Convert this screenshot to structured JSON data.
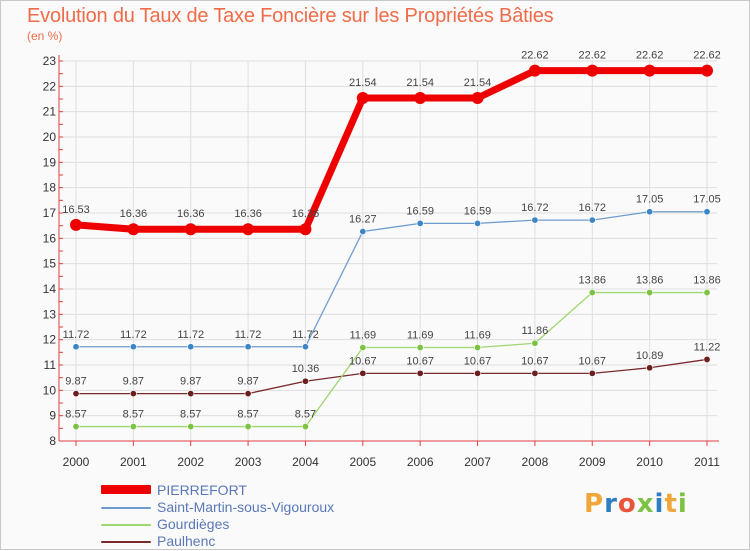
{
  "header": {
    "title": "Evolution du Taux de Taxe Foncière sur les Propriétés Bâties",
    "subtitle": "(en %)"
  },
  "logo": {
    "letters": [
      "P",
      "r",
      "o",
      "x",
      "i",
      "t",
      "i"
    ],
    "colors": [
      "#f0a63a",
      "#2e7fc2",
      "#e8553a",
      "#7cc243",
      "#2e7fc2",
      "#f0a63a",
      "#7cc243"
    ]
  },
  "chart_data": {
    "type": "line",
    "x": [
      "2000",
      "2001",
      "2002",
      "2003",
      "2004",
      "2005",
      "2006",
      "2007",
      "2008",
      "2009",
      "2010",
      "2011"
    ],
    "ylim": [
      8,
      23
    ],
    "yticks": [
      8,
      9,
      10,
      11,
      12,
      13,
      14,
      15,
      16,
      17,
      18,
      19,
      20,
      21,
      22,
      23
    ],
    "grid": true,
    "legend_placement": "bottom-left",
    "series": [
      {
        "name": "PIERREFORT",
        "color": "#ee0000",
        "width": 7,
        "values": [
          16.53,
          16.36,
          16.36,
          16.36,
          16.36,
          21.54,
          21.54,
          21.54,
          22.62,
          22.62,
          22.62,
          22.62
        ],
        "labels": [
          "16.53",
          "16.36",
          "16.36",
          "16.36",
          "16.36",
          "21.54",
          "21.54",
          "21.54",
          "22.62",
          "22.62",
          "22.62",
          "22.62"
        ]
      },
      {
        "name": "Saint-Martin-sous-Vigouroux",
        "color": "#6e9cd0",
        "marker": "#3d86c6",
        "width": 1.3,
        "values": [
          11.72,
          11.72,
          11.72,
          11.72,
          11.72,
          16.27,
          16.59,
          16.59,
          16.72,
          16.72,
          17.05,
          17.05
        ],
        "labels": [
          "11.72",
          "11.72",
          "11.72",
          "11.72",
          "11.72",
          "16.27",
          "16.59",
          "16.59",
          "16.72",
          "16.72",
          "17.05",
          "17.05"
        ]
      },
      {
        "name": "Gourdièges",
        "color": "#9ed66f",
        "marker": "#7cc243",
        "width": 1.3,
        "values": [
          8.57,
          8.57,
          8.57,
          8.57,
          8.57,
          11.69,
          11.69,
          11.69,
          11.86,
          13.86,
          13.86,
          13.86
        ],
        "labels": [
          "8.57",
          "8.57",
          "8.57",
          "8.57",
          "8.57",
          "11.69",
          "11.69",
          "11.69",
          "11.86",
          "13.86",
          "13.86",
          "13.86"
        ]
      },
      {
        "name": "Paulhenc",
        "color": "#7a2a2a",
        "marker": "#6b1f1f",
        "width": 1.3,
        "values": [
          9.87,
          9.87,
          9.87,
          9.87,
          10.36,
          10.67,
          10.67,
          10.67,
          10.67,
          10.67,
          10.89,
          11.22
        ],
        "labels": [
          "9.87",
          "9.87",
          "9.87",
          "9.87",
          "10.36",
          "10.67",
          "10.67",
          "10.67",
          "10.67",
          "10.67",
          "10.89",
          "11.22"
        ]
      }
    ]
  }
}
